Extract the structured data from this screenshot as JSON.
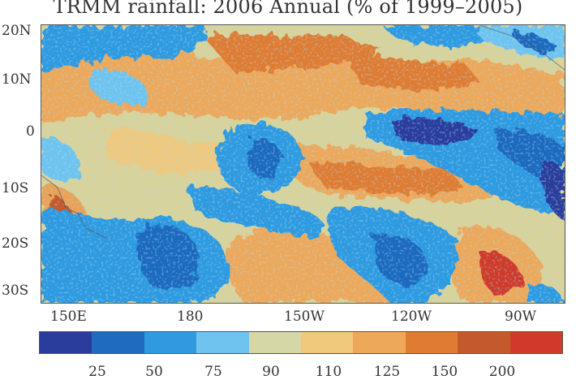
{
  "title": "TRMM rainfall: 2006 Annual (% of 1999–2005)",
  "lat_labels": [
    "20N",
    "10N",
    "0",
    "10S",
    "20S",
    "30S"
  ],
  "lon_labels": [
    "150E",
    "180",
    "150W",
    "120W",
    "90W"
  ],
  "colorbar": {
    "colors": [
      "#2a3d9c",
      "#1f6bbf",
      "#2f9ae0",
      "#6ec4ef",
      "#d6d7a6",
      "#f0c97d",
      "#eda85a",
      "#df7b32",
      "#c45a2b",
      "#cf3a2a"
    ],
    "tick_labels": [
      "25",
      "50",
      "75",
      "90",
      "110",
      "125",
      "150",
      "200"
    ]
  }
}
